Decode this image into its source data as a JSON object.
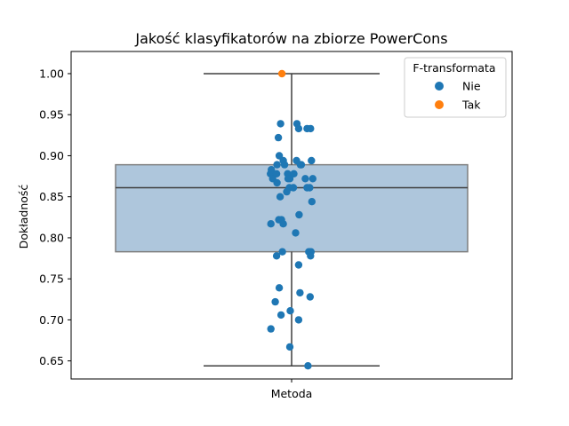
{
  "chart_data": {
    "type": "box-strip",
    "title": "Jakość klasyfikatorów na zbiorze PowerCons",
    "xlabel": "",
    "ylabel": "Dokładność",
    "categories": [
      "Metoda"
    ],
    "ylim": [
      0.628,
      1.027
    ],
    "yticks": [
      "0.65",
      "0.70",
      "0.75",
      "0.80",
      "0.85",
      "0.90",
      "0.95",
      "1.00"
    ],
    "box": {
      "whisker_low": 0.644,
      "q1": 0.783,
      "median": 0.861,
      "q3": 0.889,
      "whisker_high": 1.0
    },
    "colors": {
      "box_fill": "#aec6dc",
      "box_edge": "#7f7f7f",
      "line": "#3f3f3f",
      "nie": "#1f77b4",
      "tak": "#ff7f0e"
    },
    "legend": {
      "title": "F-transformata",
      "placement": "upper right",
      "entries": [
        {
          "label": "Nie",
          "color": "#1f77b4"
        },
        {
          "label": "Tak",
          "color": "#ff7f0e"
        }
      ]
    },
    "series": [
      {
        "name": "Nie",
        "color": "#1f77b4",
        "points": [
          {
            "x": -0.025,
            "y": 0.939
          },
          {
            "x": 0.012,
            "y": 0.939
          },
          {
            "x": 0.016,
            "y": 0.933
          },
          {
            "x": 0.035,
            "y": 0.933
          },
          {
            "x": 0.043,
            "y": 0.933
          },
          {
            "x": -0.03,
            "y": 0.922
          },
          {
            "x": -0.028,
            "y": 0.9
          },
          {
            "x": 0.011,
            "y": 0.894
          },
          {
            "x": 0.045,
            "y": 0.894
          },
          {
            "x": -0.019,
            "y": 0.894
          },
          {
            "x": -0.016,
            "y": 0.889
          },
          {
            "x": 0.022,
            "y": 0.889
          },
          {
            "x": 0.02,
            "y": 0.889
          },
          {
            "x": -0.033,
            "y": 0.889
          },
          {
            "x": -0.046,
            "y": 0.883
          },
          {
            "x": -0.048,
            "y": 0.878
          },
          {
            "x": -0.044,
            "y": 0.878
          },
          {
            "x": -0.034,
            "y": 0.878
          },
          {
            "x": -0.009,
            "y": 0.878
          },
          {
            "x": 0.005,
            "y": 0.878
          },
          {
            "x": -0.004,
            "y": 0.872
          },
          {
            "x": -0.008,
            "y": 0.872
          },
          {
            "x": 0.031,
            "y": 0.872
          },
          {
            "x": 0.048,
            "y": 0.872
          },
          {
            "x": -0.043,
            "y": 0.872
          },
          {
            "x": -0.033,
            "y": 0.867
          },
          {
            "x": -0.005,
            "y": 0.861
          },
          {
            "x": 0.004,
            "y": 0.861
          },
          {
            "x": 0.035,
            "y": 0.861
          },
          {
            "x": 0.041,
            "y": 0.861
          },
          {
            "x": -0.011,
            "y": 0.856
          },
          {
            "x": -0.026,
            "y": 0.85
          },
          {
            "x": 0.046,
            "y": 0.844
          },
          {
            "x": 0.017,
            "y": 0.828
          },
          {
            "x": -0.029,
            "y": 0.822
          },
          {
            "x": -0.023,
            "y": 0.822
          },
          {
            "x": -0.047,
            "y": 0.817
          },
          {
            "x": -0.019,
            "y": 0.817
          },
          {
            "x": 0.009,
            "y": 0.806
          },
          {
            "x": 0.039,
            "y": 0.783
          },
          {
            "x": 0.044,
            "y": 0.783
          },
          {
            "x": 0.043,
            "y": 0.778
          },
          {
            "x": -0.021,
            "y": 0.783
          },
          {
            "x": -0.034,
            "y": 0.778
          },
          {
            "x": 0.016,
            "y": 0.767
          },
          {
            "x": 0.019,
            "y": 0.733
          },
          {
            "x": -0.028,
            "y": 0.739
          },
          {
            "x": 0.042,
            "y": 0.728
          },
          {
            "x": -0.037,
            "y": 0.722
          },
          {
            "x": -0.003,
            "y": 0.711
          },
          {
            "x": -0.024,
            "y": 0.706
          },
          {
            "x": 0.016,
            "y": 0.7
          },
          {
            "x": -0.047,
            "y": 0.689
          },
          {
            "x": -0.004,
            "y": 0.667
          },
          {
            "x": 0.037,
            "y": 0.644
          }
        ]
      },
      {
        "name": "Tak",
        "color": "#ff7f0e",
        "points": [
          {
            "x": -0.022,
            "y": 1.0
          }
        ]
      }
    ]
  }
}
